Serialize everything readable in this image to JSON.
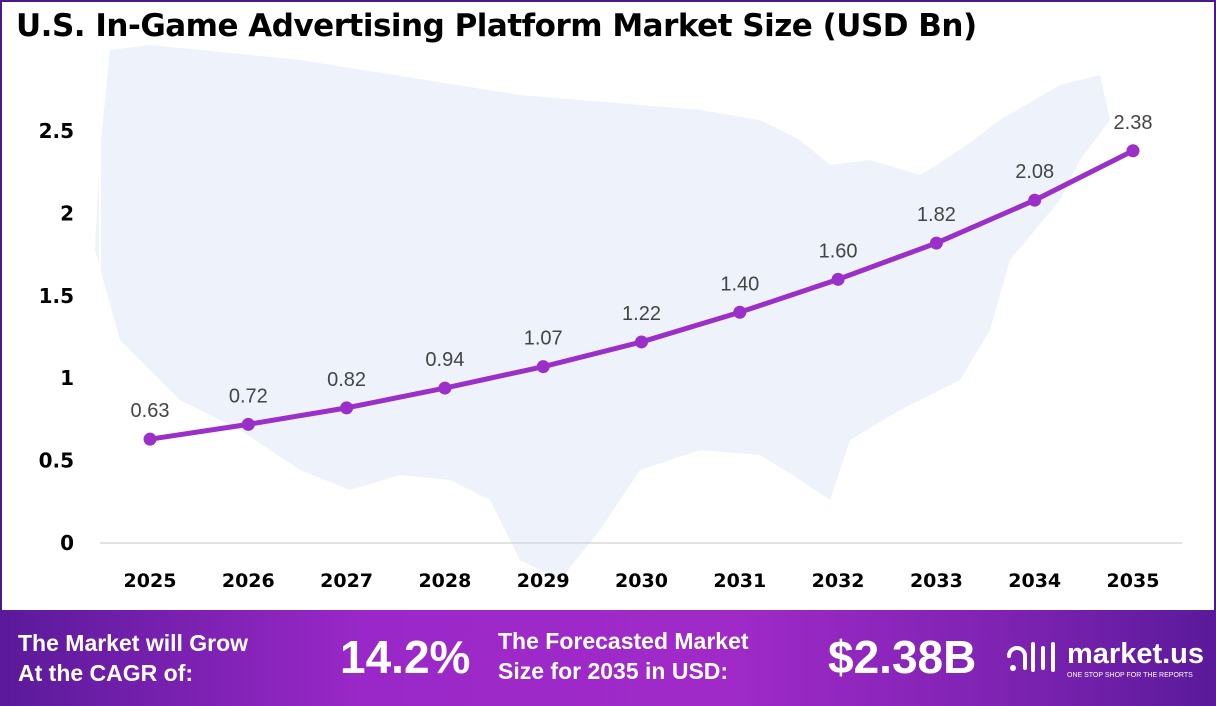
{
  "chart_data": {
    "type": "line",
    "title": "U.S. In-Game Advertising Platform Market Size (USD Bn)",
    "categories": [
      "2025",
      "2026",
      "2027",
      "2028",
      "2029",
      "2030",
      "2031",
      "2032",
      "2033",
      "2034",
      "2035"
    ],
    "values": [
      0.63,
      0.72,
      0.82,
      0.94,
      1.07,
      1.22,
      1.4,
      1.6,
      1.82,
      2.08,
      2.38
    ],
    "data_labels": [
      "0.63",
      "0.72",
      "0.82",
      "0.94",
      "1.07",
      "1.22",
      "1.40",
      "1.60",
      "1.82",
      "2.08",
      "2.38"
    ],
    "yticks": [
      "0",
      "0.5",
      "1",
      "1.5",
      "2",
      "2.5"
    ],
    "ylim": [
      0,
      2.5
    ],
    "grid": false,
    "line_color": "#9b30c8",
    "background": "U.S. map silhouette"
  },
  "footer": {
    "cagr_label_line1": "The Market will Grow",
    "cagr_label_line2": "At the CAGR of:",
    "cagr_value": "14.2%",
    "forecast_label_line1": "The Forecasted Market",
    "forecast_label_line2": "Size for 2035 in USD:",
    "forecast_value": "$2.38B",
    "brand_name": "market.us",
    "brand_tagline": "ONE STOP SHOP FOR THE REPORTS"
  }
}
